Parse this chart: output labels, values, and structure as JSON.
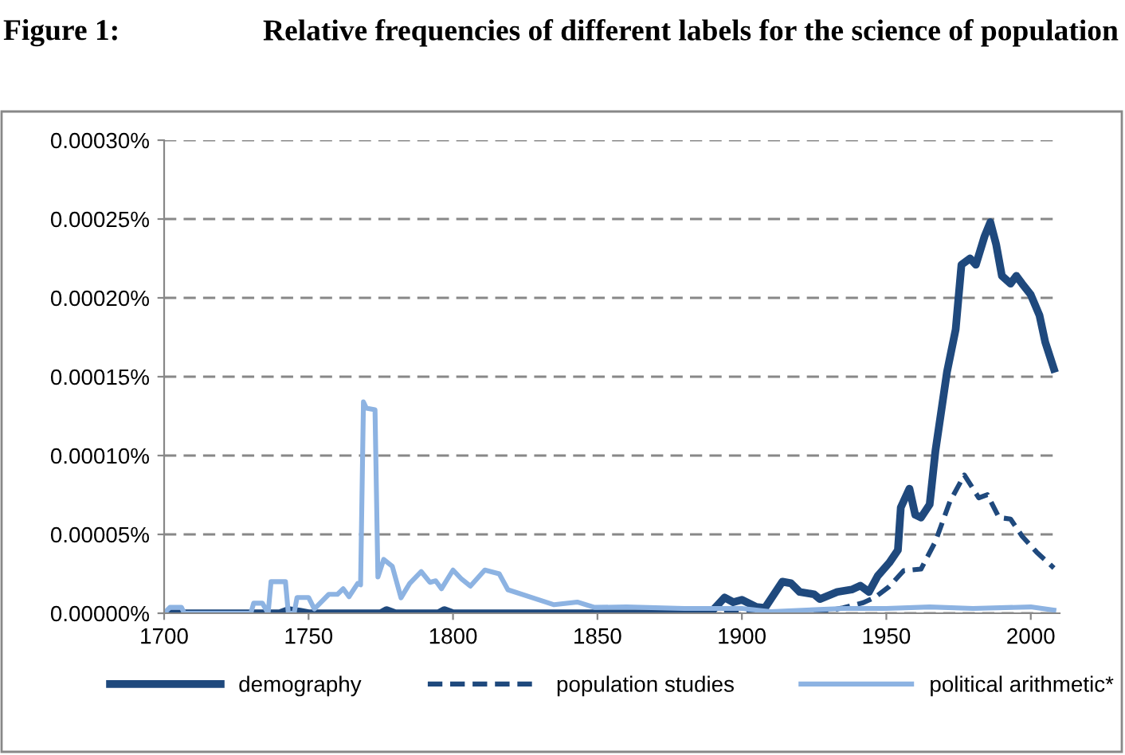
{
  "chart_data": {
    "type": "line",
    "title": "Relative frequencies of different labels for the science of population",
    "annotations": [
      "Figure 1:"
    ],
    "xlim": [
      1700,
      2010
    ],
    "xticks": [
      1700,
      1750,
      1800,
      1850,
      1900,
      1950,
      2000
    ],
    "ylim": [
      0,
      0.0003
    ],
    "yticks": [
      {
        "value": 0,
        "label": "0.00000%"
      },
      {
        "value": 5e-05,
        "label": "0.00005%"
      },
      {
        "value": 0.0001,
        "label": "0.00010%"
      },
      {
        "value": 0.00015,
        "label": "0.00015%"
      },
      {
        "value": 0.0002,
        "label": "0.00020%"
      },
      {
        "value": 0.00025,
        "label": "0.00025%"
      },
      {
        "value": 0.0003,
        "label": "0.00030%"
      }
    ],
    "grid": "y",
    "legend": "bottom",
    "marker": "none",
    "series": [
      {
        "name": "demography",
        "color": "#1f497d",
        "line_style": "solid",
        "x": [
          1700,
          1740,
          1743,
          1747,
          1750,
          1775,
          1777,
          1780,
          1795,
          1797,
          1800,
          1889,
          1894,
          1897,
          1900,
          1905,
          1908,
          1914,
          1917,
          1920,
          1925,
          1927,
          1933,
          1938,
          1941,
          1944,
          1947,
          1951,
          1954,
          1955,
          1958,
          1960,
          1962,
          1965,
          1967,
          1971,
          1974,
          1976,
          1979,
          1981,
          1984,
          1986,
          1988,
          1990,
          1993,
          1995,
          1997,
          2000,
          2003,
          2005,
          2008
        ],
        "values": [
          0,
          0,
          2e-06,
          1e-06,
          0,
          0,
          2e-06,
          0,
          0,
          2e-06,
          0,
          0,
          1e-05,
          7e-06,
          8.5e-06,
          4e-06,
          3.4e-06,
          2e-05,
          1.9e-05,
          1.35e-05,
          1.2e-05,
          9e-06,
          1.35e-05,
          1.5e-05,
          1.75e-05,
          1.35e-05,
          2.36e-05,
          3.2e-05,
          4e-05,
          6.7e-05,
          7.9e-05,
          6.24e-05,
          6.07e-05,
          6.9e-05,
          0.000103,
          0.000153,
          0.00018,
          0.000221,
          0.000225,
          0.000221,
          0.000239,
          0.000248,
          0.000234,
          0.000214,
          0.000209,
          0.000214,
          0.000209,
          0.000202,
          0.000189,
          0.000172,
          0.000155
        ]
      },
      {
        "name": "population studies",
        "color": "#1f497d",
        "line_style": "dashed",
        "x": [
          1700,
          1925,
          1935,
          1942,
          1946,
          1951,
          1956,
          1962,
          1967,
          1972,
          1977,
          1982,
          1985,
          1989,
          1993,
          1997,
          2002,
          2008
        ],
        "values": [
          0,
          0,
          3.4e-06,
          6.7e-06,
          1e-05,
          1.69e-05,
          2.7e-05,
          2.8e-05,
          4.55e-05,
          7.08e-05,
          8.77e-05,
          7.32e-05,
          7.52e-05,
          6.07e-05,
          5.97e-05,
          4.89e-05,
          3.88e-05,
          2.87e-05
        ]
      },
      {
        "name": "political arithmetic*",
        "color": "#8db3e2",
        "line_style": "solid",
        "x": [
          1700,
          1702,
          1706,
          1707,
          1730,
          1731,
          1734,
          1736,
          1737,
          1742,
          1743,
          1745,
          1746,
          1750,
          1752,
          1757,
          1760,
          1762,
          1764,
          1767,
          1768,
          1769,
          1770,
          1773,
          1774,
          1776,
          1779,
          1782,
          1785,
          1789,
          1792,
          1794,
          1796,
          1800,
          1803,
          1806,
          1811,
          1816,
          1819,
          1828,
          1835,
          1843,
          1849,
          1860,
          1880,
          1900,
          1910,
          1935,
          1950,
          1965,
          1980,
          2000,
          2008
        ],
        "values": [
          0,
          3.7e-06,
          3.7e-06,
          0,
          0,
          6.4e-06,
          6.4e-06,
          0,
          2e-05,
          2e-05,
          0,
          0,
          1e-05,
          1e-05,
          2.7e-06,
          1.2e-05,
          1.2e-05,
          1.55e-05,
          1.05e-05,
          1.89e-05,
          1.8e-05,
          0.000134,
          0.00013,
          0.000129,
          2.3e-05,
          3.41e-05,
          2.97e-05,
          9.8e-06,
          1.89e-05,
          2.64e-05,
          1.96e-05,
          2.06e-05,
          1.55e-05,
          2.74e-05,
          2.16e-05,
          1.72e-05,
          2.74e-05,
          2.5e-05,
          1.49e-05,
          9.5e-06,
          5.4e-06,
          7.1e-06,
          3.7e-06,
          4e-06,
          3e-06,
          3e-06,
          1e-06,
          3e-06,
          3e-06,
          4e-06,
          3e-06,
          4e-06,
          2e-06
        ]
      }
    ]
  }
}
